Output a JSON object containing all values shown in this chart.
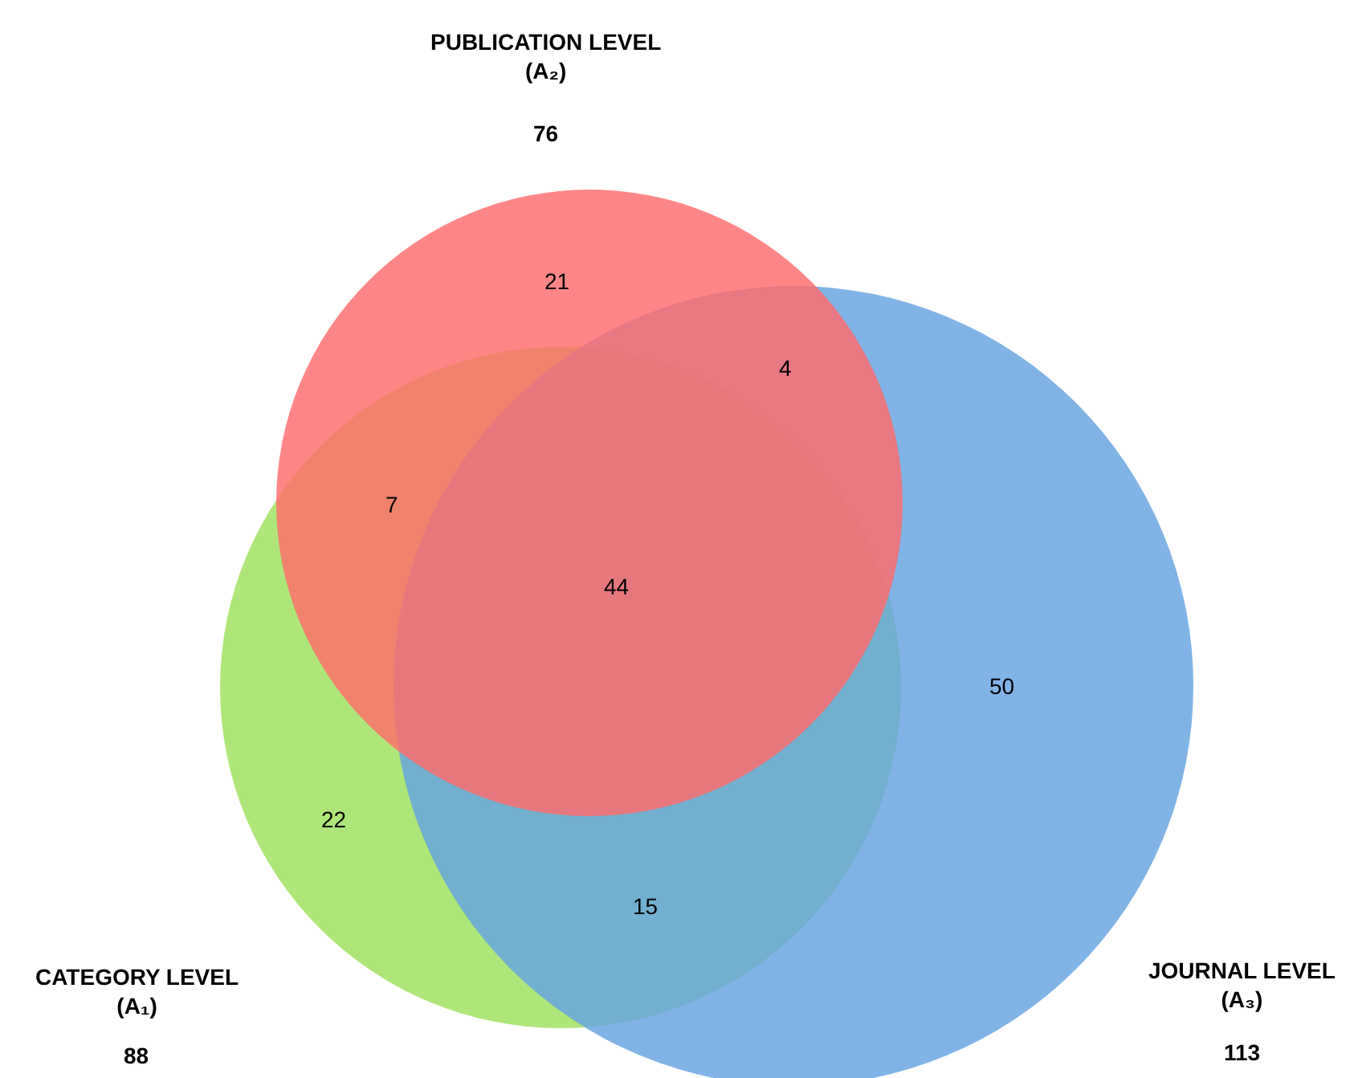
{
  "chart_data": {
    "type": "other",
    "categories": [
      "CATEGORY LEVEL\n(A₁)",
      "PUBLICATION LEVEL\n(A₂)",
      "JOURNAL LEVEL\n(A₃)"
    ],
    "values": [
      88,
      76,
      113
    ],
    "colors": [
      "#9ee05c",
      "#ff6b6b",
      "#65a2e0"
    ],
    "data_labels": true,
    "annotations": [
      "22",
      "21",
      "50",
      "7",
      "15",
      "4",
      "44"
    ]
  }
}
